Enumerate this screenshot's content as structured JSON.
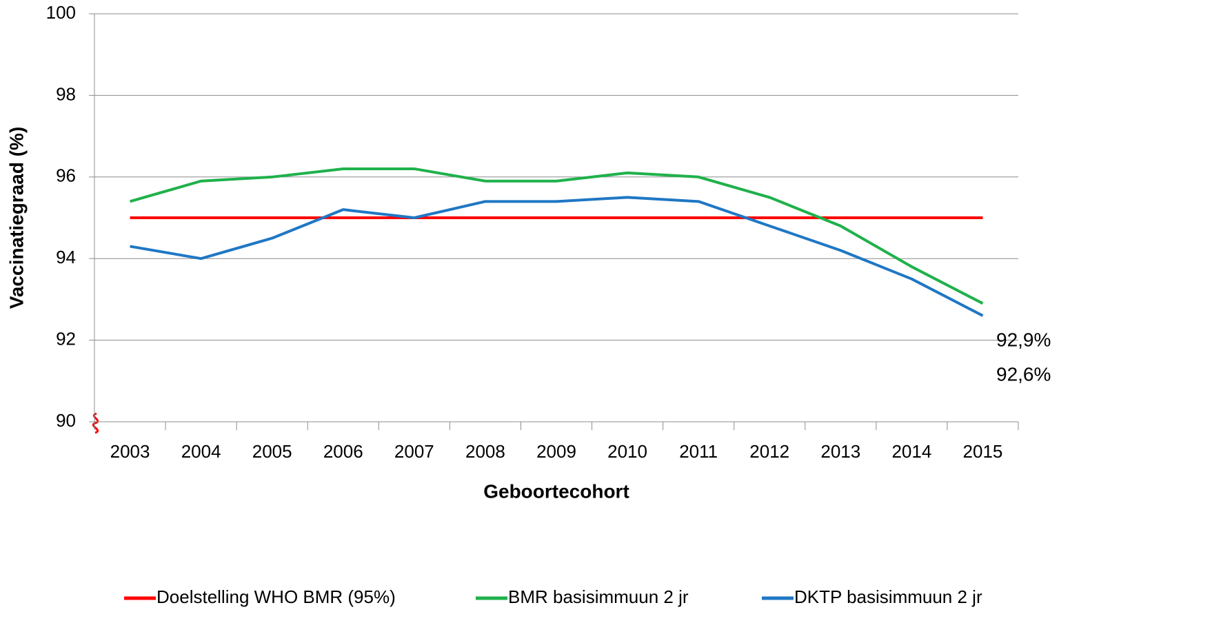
{
  "chart_data": {
    "type": "line",
    "xlabel": "Geboortecohort",
    "ylabel": "Vaccinatiegraad (%)",
    "categories": [
      "2003",
      "2004",
      "2005",
      "2006",
      "2007",
      "2008",
      "2009",
      "2010",
      "2011",
      "2012",
      "2013",
      "2014",
      "2015"
    ],
    "series": [
      {
        "name": "Doelstelling WHO BMR (95%)",
        "color": "#ff0000",
        "values": [
          95,
          95,
          95,
          95,
          95,
          95,
          95,
          95,
          95,
          95,
          95,
          95,
          95
        ]
      },
      {
        "name": "BMR basisimmuun 2 jr",
        "color": "#1fb14b",
        "values": [
          95.4,
          95.9,
          96.0,
          96.2,
          96.2,
          95.9,
          95.9,
          96.1,
          96.0,
          95.5,
          94.8,
          93.8,
          92.9
        ],
        "value_labels": [
          null,
          null,
          null,
          null,
          null,
          null,
          null,
          null,
          null,
          null,
          null,
          null,
          "92,9%"
        ]
      },
      {
        "name": "DKTP basisimmuun 2 jr",
        "color": "#1f77c4",
        "values": [
          94.3,
          94.0,
          94.5,
          95.2,
          95.0,
          95.4,
          95.4,
          95.5,
          95.4,
          94.8,
          94.2,
          93.5,
          92.6
        ],
        "value_labels": [
          null,
          null,
          null,
          null,
          null,
          null,
          null,
          null,
          null,
          null,
          null,
          null,
          "92,6%"
        ]
      }
    ],
    "ylim": [
      90,
      100
    ],
    "yticks": [
      90,
      92,
      94,
      96,
      98,
      100
    ],
    "grid": true,
    "legend": "bottom"
  }
}
